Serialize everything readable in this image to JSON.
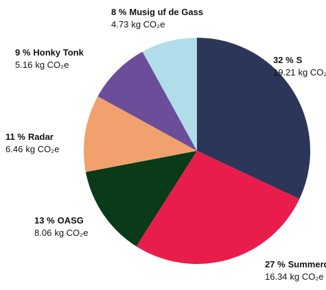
{
  "chart_data": {
    "type": "pie",
    "categories": [
      "S",
      "Summerdays",
      "OASG",
      "Radar",
      "Honky Tonk",
      "Musig uf de Gass"
    ],
    "values": [
      32,
      27,
      13,
      11,
      9,
      8
    ],
    "value_labels": [
      "32 %",
      "27 %",
      "13 %",
      "11 %",
      "9 %",
      "8 %"
    ],
    "emissions": [
      19.21,
      16.34,
      8.06,
      6.46,
      5.16,
      4.73
    ],
    "emission_unit": "kg CO₂e",
    "colors": [
      "#2b3659",
      "#e91d4b",
      "#0b3a19",
      "#f0a16d",
      "#6c4d99",
      "#b1dcea"
    ]
  }
}
